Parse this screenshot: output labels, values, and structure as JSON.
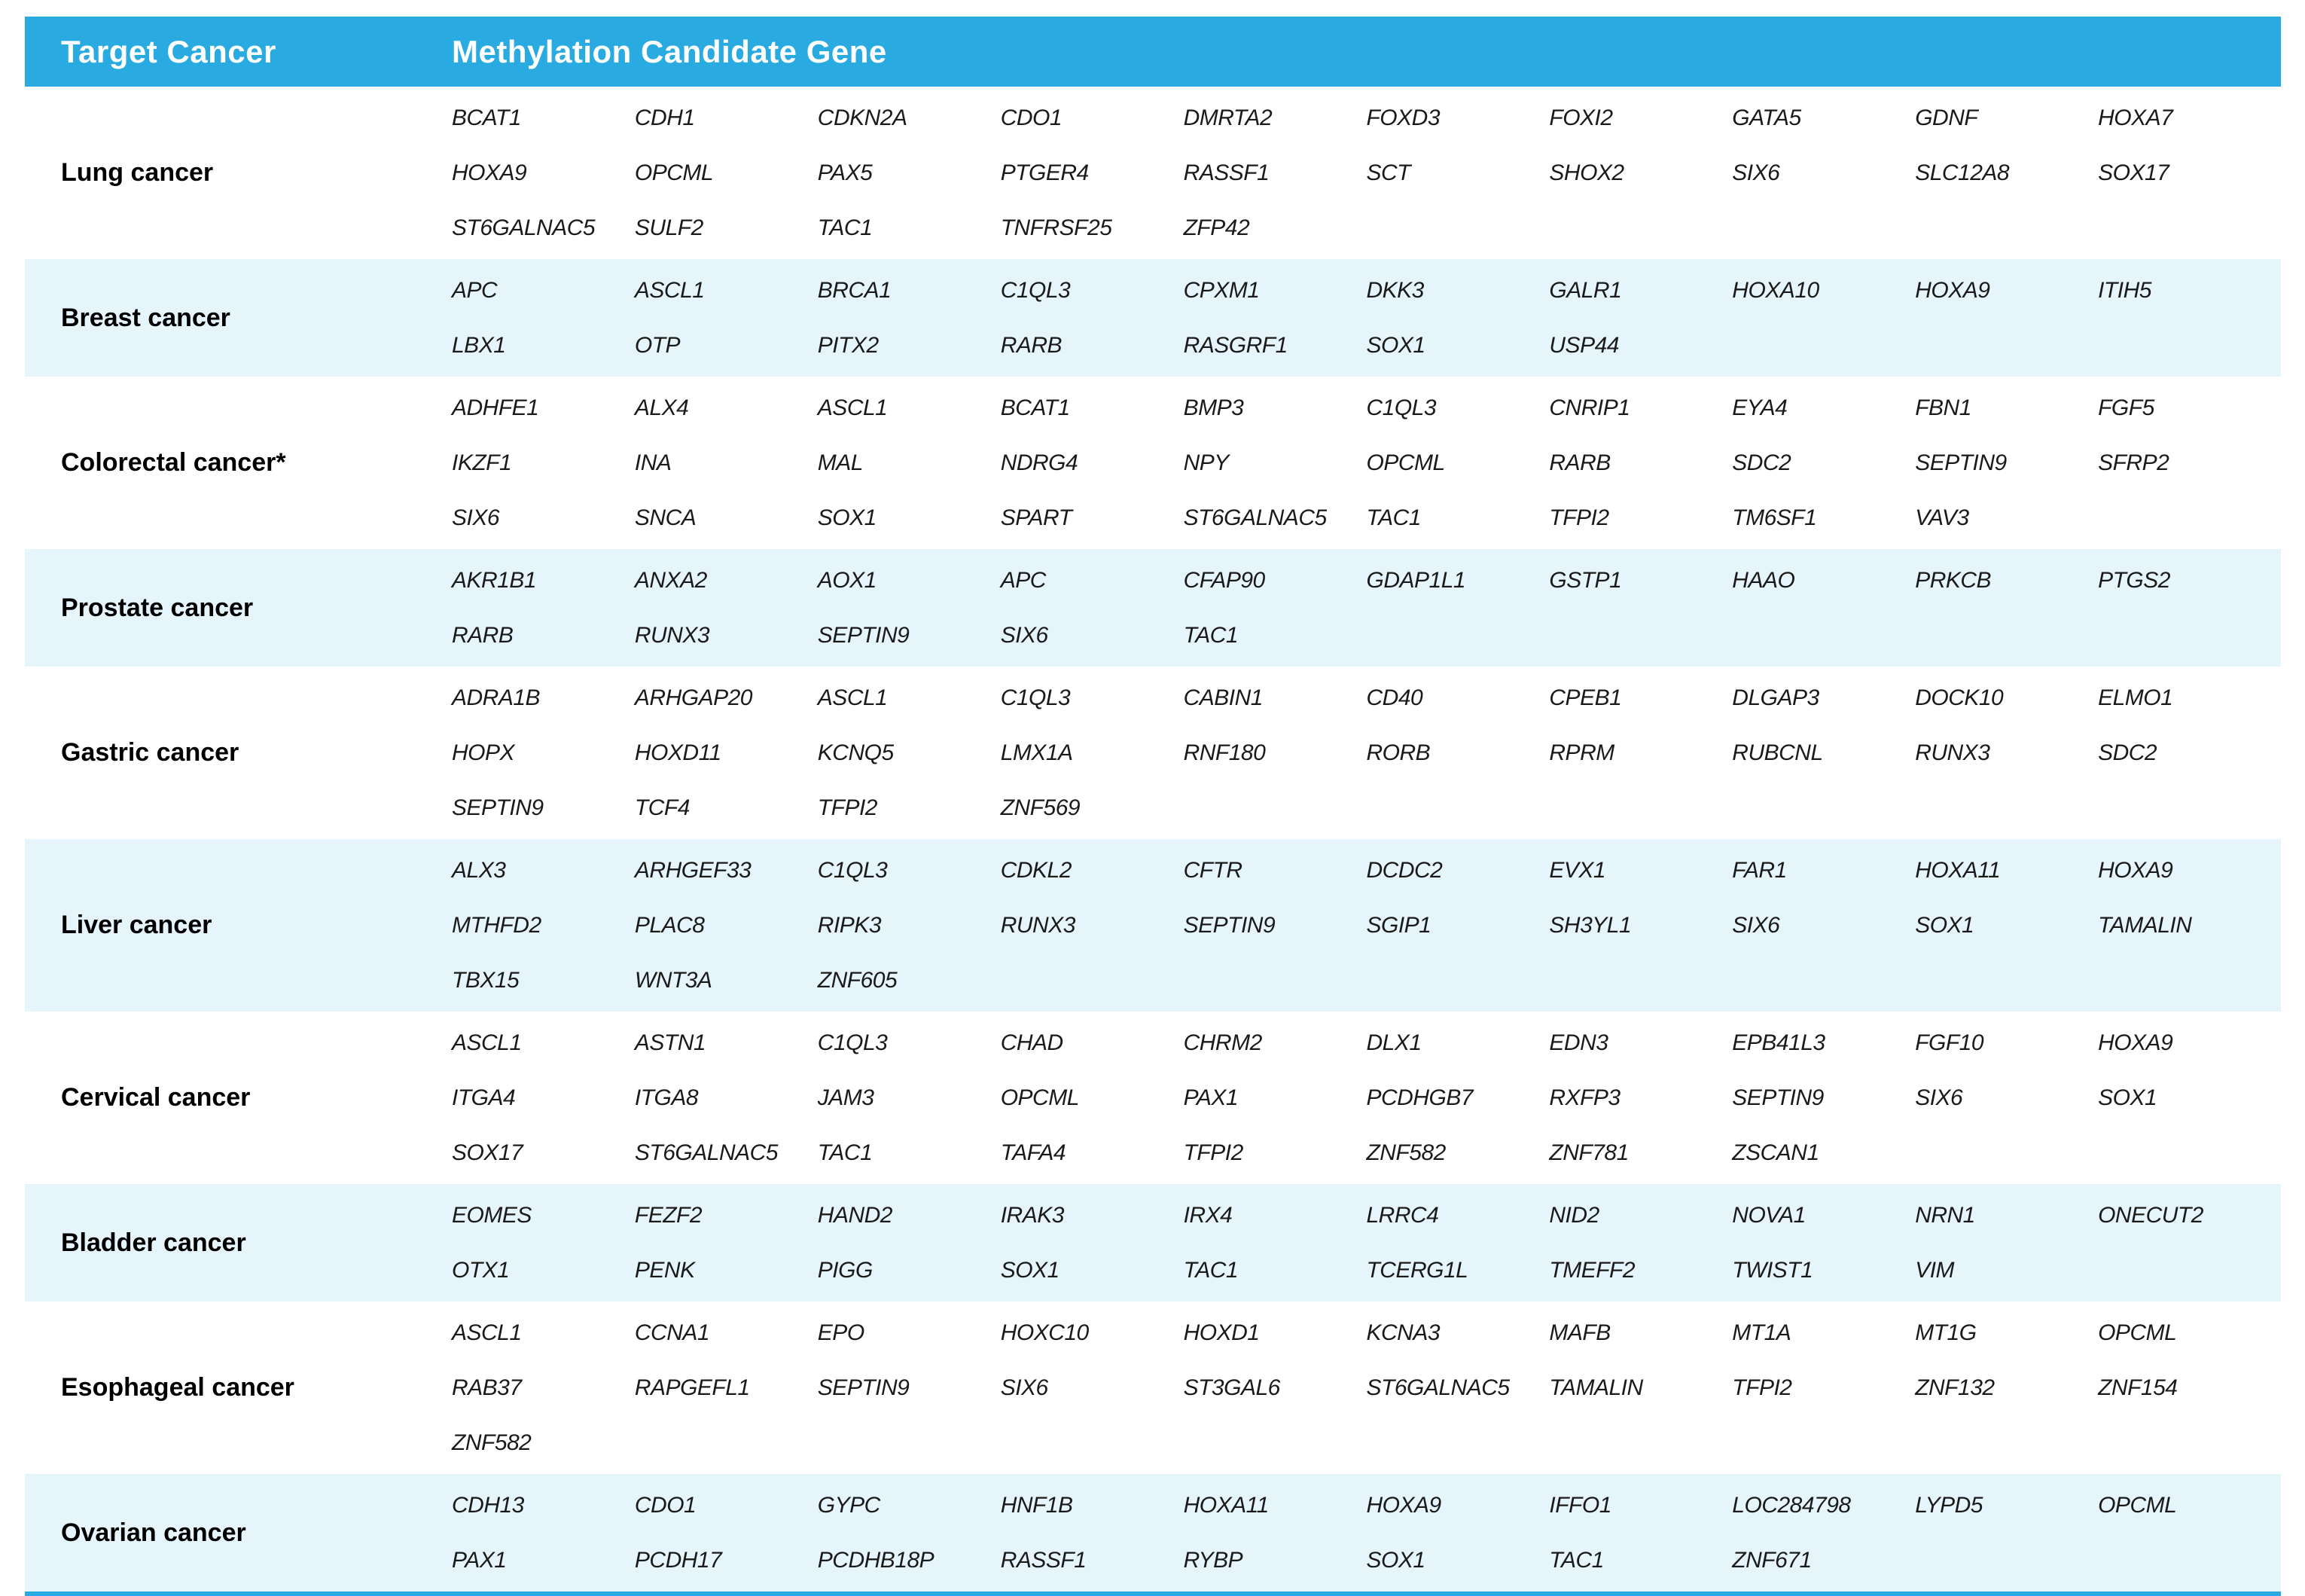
{
  "table": {
    "header": {
      "target_cancer": "Target Cancer",
      "methylation_candidate_gene": "Methylation Candidate Gene"
    },
    "rows": [
      {
        "cancer": "Lung cancer",
        "genes": [
          "BCAT1",
          "CDH1",
          "CDKN2A",
          "CDO1",
          "DMRTA2",
          "FOXD3",
          "FOXI2",
          "GATA5",
          "GDNF",
          "HOXA7",
          "HOXA9",
          "OPCML",
          "PAX5",
          "PTGER4",
          "RASSF1",
          "SCT",
          "SHOX2",
          "SIX6",
          "SLC12A8",
          "SOX17",
          "ST6GALNAC5",
          "SULF2",
          "TAC1",
          "TNFRSF25",
          "ZFP42"
        ]
      },
      {
        "cancer": "Breast cancer",
        "genes": [
          "APC",
          "ASCL1",
          "BRCA1",
          "C1QL3",
          "CPXM1",
          "DKK3",
          "GALR1",
          "HOXA10",
          "HOXA9",
          "ITIH5",
          "LBX1",
          "OTP",
          "PITX2",
          "RARB",
          "RASGRF1",
          "SOX1",
          "USP44"
        ]
      },
      {
        "cancer": "Colorectal cancer*",
        "genes": [
          "ADHFE1",
          "ALX4",
          "ASCL1",
          "BCAT1",
          "BMP3",
          "C1QL3",
          "CNRIP1",
          "EYA4",
          "FBN1",
          "FGF5",
          "IKZF1",
          "INA",
          "MAL",
          "NDRG4",
          "NPY",
          "OPCML",
          "RARB",
          "SDC2",
          "SEPTIN9",
          "SFRP2",
          "SIX6",
          "SNCA",
          "SOX1",
          "SPART",
          "ST6GALNAC5",
          "TAC1",
          "TFPI2",
          "TM6SF1",
          "VAV3"
        ]
      },
      {
        "cancer": "Prostate cancer",
        "genes": [
          "AKR1B1",
          "ANXA2",
          "AOX1",
          "APC",
          "CFAP90",
          "GDAP1L1",
          "GSTP1",
          "HAAO",
          "PRKCB",
          "PTGS2",
          "RARB",
          "RUNX3",
          "SEPTIN9",
          "SIX6",
          "TAC1"
        ]
      },
      {
        "cancer": "Gastric cancer",
        "genes": [
          "ADRA1B",
          "ARHGAP20",
          "ASCL1",
          "C1QL3",
          "CABIN1",
          "CD40",
          "CPEB1",
          "DLGAP3",
          "DOCK10",
          "ELMO1",
          "HOPX",
          "HOXD11",
          "KCNQ5",
          "LMX1A",
          "RNF180",
          "RORB",
          "RPRM",
          "RUBCNL",
          "RUNX3",
          "SDC2",
          "SEPTIN9",
          "TCF4",
          "TFPI2",
          "ZNF569"
        ]
      },
      {
        "cancer": "Liver cancer",
        "genes": [
          "ALX3",
          "ARHGEF33",
          "C1QL3",
          "CDKL2",
          "CFTR",
          "DCDC2",
          "EVX1",
          "FAR1",
          "HOXA11",
          "HOXA9",
          "MTHFD2",
          "PLAC8",
          "RIPK3",
          "RUNX3",
          "SEPTIN9",
          "SGIP1",
          "SH3YL1",
          "SIX6",
          "SOX1",
          "TAMALIN",
          "TBX15",
          "WNT3A",
          "ZNF605"
        ]
      },
      {
        "cancer": "Cervical cancer",
        "genes": [
          "ASCL1",
          "ASTN1",
          "C1QL3",
          "CHAD",
          "CHRM2",
          "DLX1",
          "EDN3",
          "EPB41L3",
          "FGF10",
          "HOXA9",
          "ITGA4",
          "ITGA8",
          "JAM3",
          "OPCML",
          "PAX1",
          "PCDHGB7",
          "RXFP3",
          "SEPTIN9",
          "SIX6",
          "SOX1",
          "SOX17",
          "ST6GALNAC5",
          "TAC1",
          "TAFA4",
          "TFPI2",
          "ZNF582",
          "ZNF781",
          "ZSCAN1"
        ]
      },
      {
        "cancer": "Bladder cancer",
        "genes": [
          "EOMES",
          "FEZF2",
          "HAND2",
          "IRAK3",
          "IRX4",
          "LRRC4",
          "NID2",
          "NOVA1",
          "NRN1",
          "ONECUT2",
          "OTX1",
          "PENK",
          "PIGG",
          "SOX1",
          "TAC1",
          "TCERG1L",
          "TMEFF2",
          "TWIST1",
          "VIM"
        ]
      },
      {
        "cancer": "Esophageal cancer",
        "genes": [
          "ASCL1",
          "CCNA1",
          "EPO",
          "HOXC10",
          "HOXD1",
          "KCNA3",
          "MAFB",
          "MT1A",
          "MT1G",
          "OPCML",
          "RAB37",
          "RAPGEFL1",
          "SEPTIN9",
          "SIX6",
          "ST3GAL6",
          "ST6GALNAC5",
          "TAMALIN",
          "TFPI2",
          "ZNF132",
          "ZNF154",
          "ZNF582"
        ]
      },
      {
        "cancer": "Ovarian cancer",
        "genes": [
          "CDH13",
          "CDO1",
          "GYPC",
          "HNF1B",
          "HOXA11",
          "HOXA9",
          "IFFO1",
          "LOC284798",
          "LYPD5",
          "OPCML",
          "PAX1",
          "PCDH17",
          "PCDHB18P",
          "RASSF1",
          "RYBP",
          "SOX1",
          "TAC1",
          "ZNF671"
        ]
      }
    ]
  },
  "colors": {
    "header_bg": "#29ABE2",
    "row_alt_bg": "#E6F4FC",
    "bottom_border": "#29ABE2",
    "header_text": "#ffffff",
    "body_text": "#1a1a1a"
  }
}
